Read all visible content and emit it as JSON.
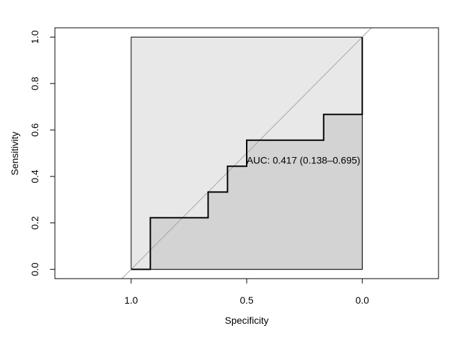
{
  "chart_data": {
    "type": "line",
    "subtype": "roc",
    "xlabel": "Specificity",
    "ylabel": "Sensitivity",
    "xlim": [
      1.33,
      -0.33
    ],
    "ylim": [
      -0.04,
      1.04
    ],
    "x_reversed": true,
    "x_ticks": [
      1.0,
      0.5,
      0.0
    ],
    "x_tick_labels": [
      "1.0",
      "0.5",
      "0.0"
    ],
    "y_ticks": [
      0.0,
      0.2,
      0.4,
      0.6,
      0.8,
      1.0
    ],
    "y_tick_labels": [
      "0.0",
      "0.2",
      "0.4",
      "0.6",
      "0.8",
      "1.0"
    ],
    "grid": false,
    "roc_curve": {
      "specificity": [
        1.0,
        0.917,
        0.917,
        0.667,
        0.667,
        0.583,
        0.583,
        0.5,
        0.5,
        0.167,
        0.167,
        0.0,
        0.0
      ],
      "sensitivity": [
        0.0,
        0.0,
        0.222,
        0.222,
        0.333,
        0.333,
        0.444,
        0.444,
        0.556,
        0.556,
        0.667,
        0.667,
        1.0
      ]
    },
    "ci_box": {
      "specificity": [
        1.0,
        0.0
      ],
      "sensitivity": [
        0.0,
        1.0
      ]
    },
    "chance_line": true,
    "annotation": "AUC: 0.417 (0.138–0.695)",
    "colors": {
      "roc_line": "#000000",
      "roc_area": "#d3d3d3",
      "ci_area": "#e8e8e8",
      "chance_line": "#a6a6a6"
    }
  }
}
